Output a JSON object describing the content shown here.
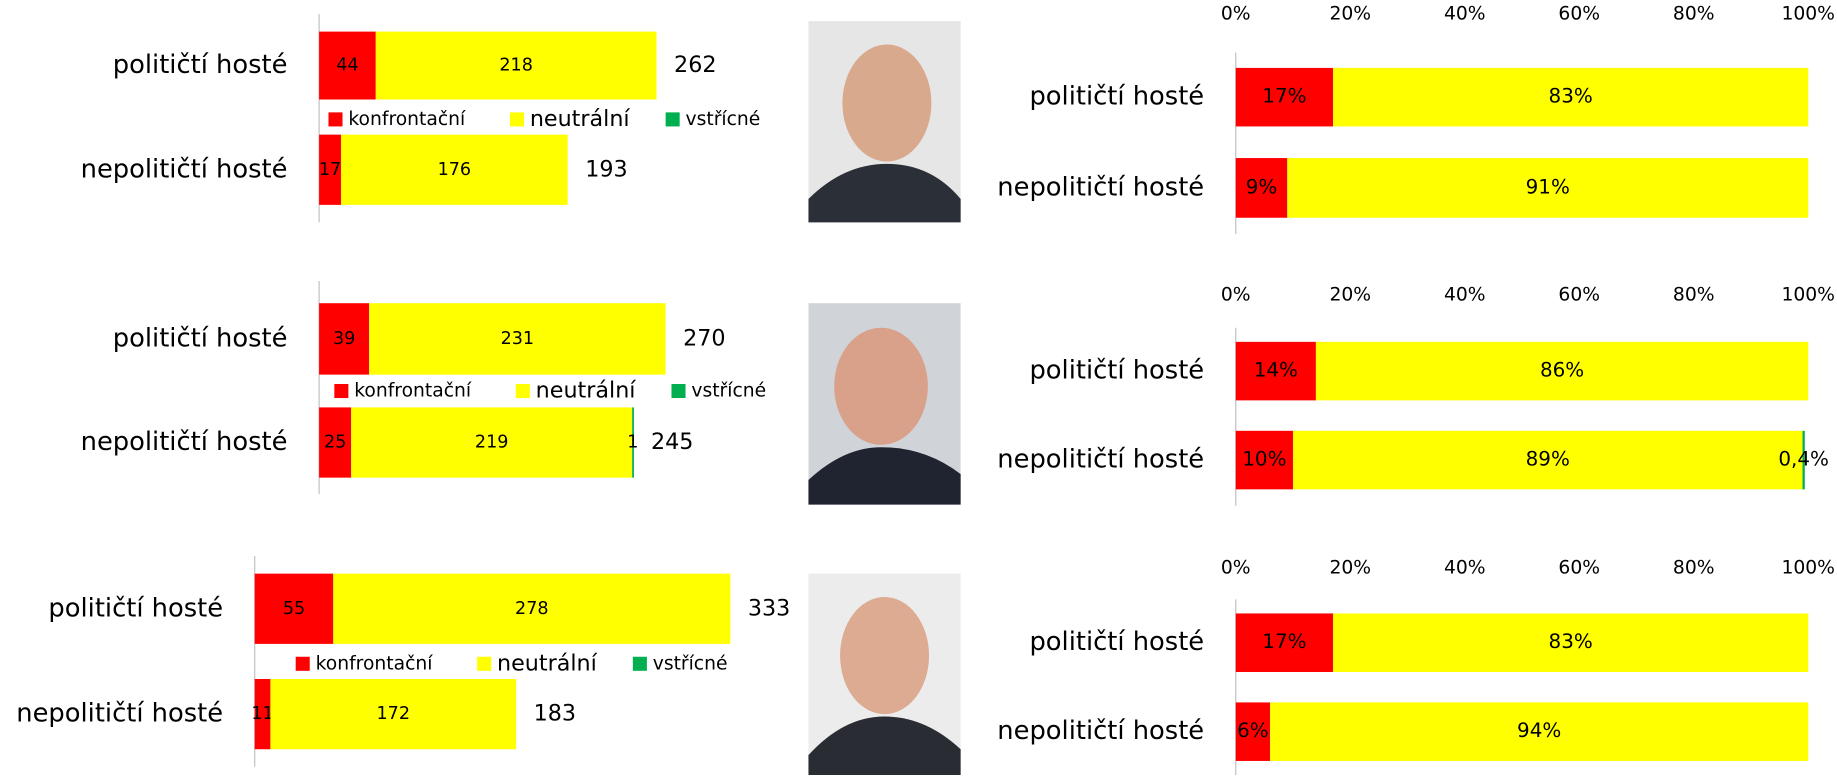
{
  "chart_data": [
    {
      "type": "bar",
      "stacked": true,
      "orientation": "horizontal",
      "categories": [
        "političtí hosté",
        "nepolitičtí hosté"
      ],
      "series": [
        {
          "name": "konfrontační",
          "color": "#ff0000",
          "values": [
            44,
            17
          ]
        },
        {
          "name": "neutrální",
          "color": "#ffff00",
          "values": [
            218,
            176
          ]
        },
        {
          "name": "vstřícné",
          "color": "#00b050",
          "values": [
            null,
            null
          ]
        }
      ],
      "totals": [
        262,
        193
      ]
    },
    {
      "type": "bar",
      "stacked": true,
      "orientation": "horizontal",
      "categories": [
        "političtí hosté",
        "nepolitičtí hosté"
      ],
      "series": [
        {
          "name": "konfrontační",
          "color": "#ff0000",
          "values": [
            39,
            25
          ]
        },
        {
          "name": "neutrální",
          "color": "#ffff00",
          "values": [
            231,
            219
          ]
        },
        {
          "name": "vstřícné",
          "color": "#00b050",
          "values": [
            null,
            1
          ]
        }
      ],
      "totals": [
        270,
        245
      ]
    },
    {
      "type": "bar",
      "stacked": true,
      "orientation": "horizontal",
      "categories": [
        "političtí hosté",
        "nepolitičtí hosté"
      ],
      "series": [
        {
          "name": "konfrontační",
          "color": "#ff0000",
          "values": [
            55,
            11
          ]
        },
        {
          "name": "neutrální",
          "color": "#ffff00",
          "values": [
            278,
            172
          ]
        },
        {
          "name": "vstřícné",
          "color": "#00b050",
          "values": [
            null,
            null
          ]
        }
      ],
      "totals": [
        333,
        183
      ]
    },
    {
      "type": "bar",
      "stacked": true,
      "orientation": "horizontal",
      "categories": [
        "političtí hosté",
        "nepolitičtí hosté"
      ],
      "xlim": [
        0,
        100
      ],
      "xticks": [
        {
          "value": 0,
          "label": "0%"
        },
        {
          "value": 20,
          "label": "20%"
        },
        {
          "value": 40,
          "label": "40%"
        },
        {
          "value": 60,
          "label": "60%"
        },
        {
          "value": 80,
          "label": "80%"
        },
        {
          "value": 100,
          "label": "100%"
        }
      ],
      "series": [
        {
          "color": "#ff0000",
          "values": [
            17,
            9
          ],
          "value_labels": [
            "17%",
            "9%"
          ]
        },
        {
          "color": "#ffff00",
          "values": [
            83,
            91
          ],
          "value_labels": [
            "83%",
            "91%"
          ]
        }
      ]
    },
    {
      "type": "bar",
      "stacked": true,
      "orientation": "horizontal",
      "categories": [
        "političtí hosté",
        "nepolitičtí hosté"
      ],
      "xlim": [
        0,
        100
      ],
      "xticks": [
        {
          "value": 0,
          "label": "0%"
        },
        {
          "value": 20,
          "label": "20%"
        },
        {
          "value": 40,
          "label": "40%"
        },
        {
          "value": 60,
          "label": "60%"
        },
        {
          "value": 80,
          "label": "80%"
        },
        {
          "value": 100,
          "label": "100%"
        }
      ],
      "series": [
        {
          "color": "#ff0000",
          "values": [
            14,
            10
          ],
          "value_labels": [
            "14%",
            "10%"
          ]
        },
        {
          "color": "#ffff00",
          "values": [
            86,
            89
          ],
          "value_labels": [
            "86%",
            "89%"
          ]
        },
        {
          "color": "#00b050",
          "values": [
            null,
            0.4
          ],
          "value_labels": [
            null,
            "0,4%"
          ]
        }
      ]
    },
    {
      "type": "bar",
      "stacked": true,
      "orientation": "horizontal",
      "categories": [
        "političtí hosté",
        "nepolitičtí hosté"
      ],
      "xlim": [
        0,
        100
      ],
      "xticks": [
        {
          "value": 0,
          "label": "0%"
        },
        {
          "value": 20,
          "label": "20%"
        },
        {
          "value": 40,
          "label": "40%"
        },
        {
          "value": 60,
          "label": "60%"
        },
        {
          "value": 80,
          "label": "80%"
        },
        {
          "value": 100,
          "label": "100%"
        }
      ],
      "series": [
        {
          "color": "#ff0000",
          "values": [
            17,
            6
          ],
          "value_labels": [
            "17%",
            "6%"
          ]
        },
        {
          "color": "#ffff00",
          "values": [
            83,
            94
          ],
          "value_labels": [
            "83%",
            "94%"
          ]
        }
      ]
    }
  ]
}
